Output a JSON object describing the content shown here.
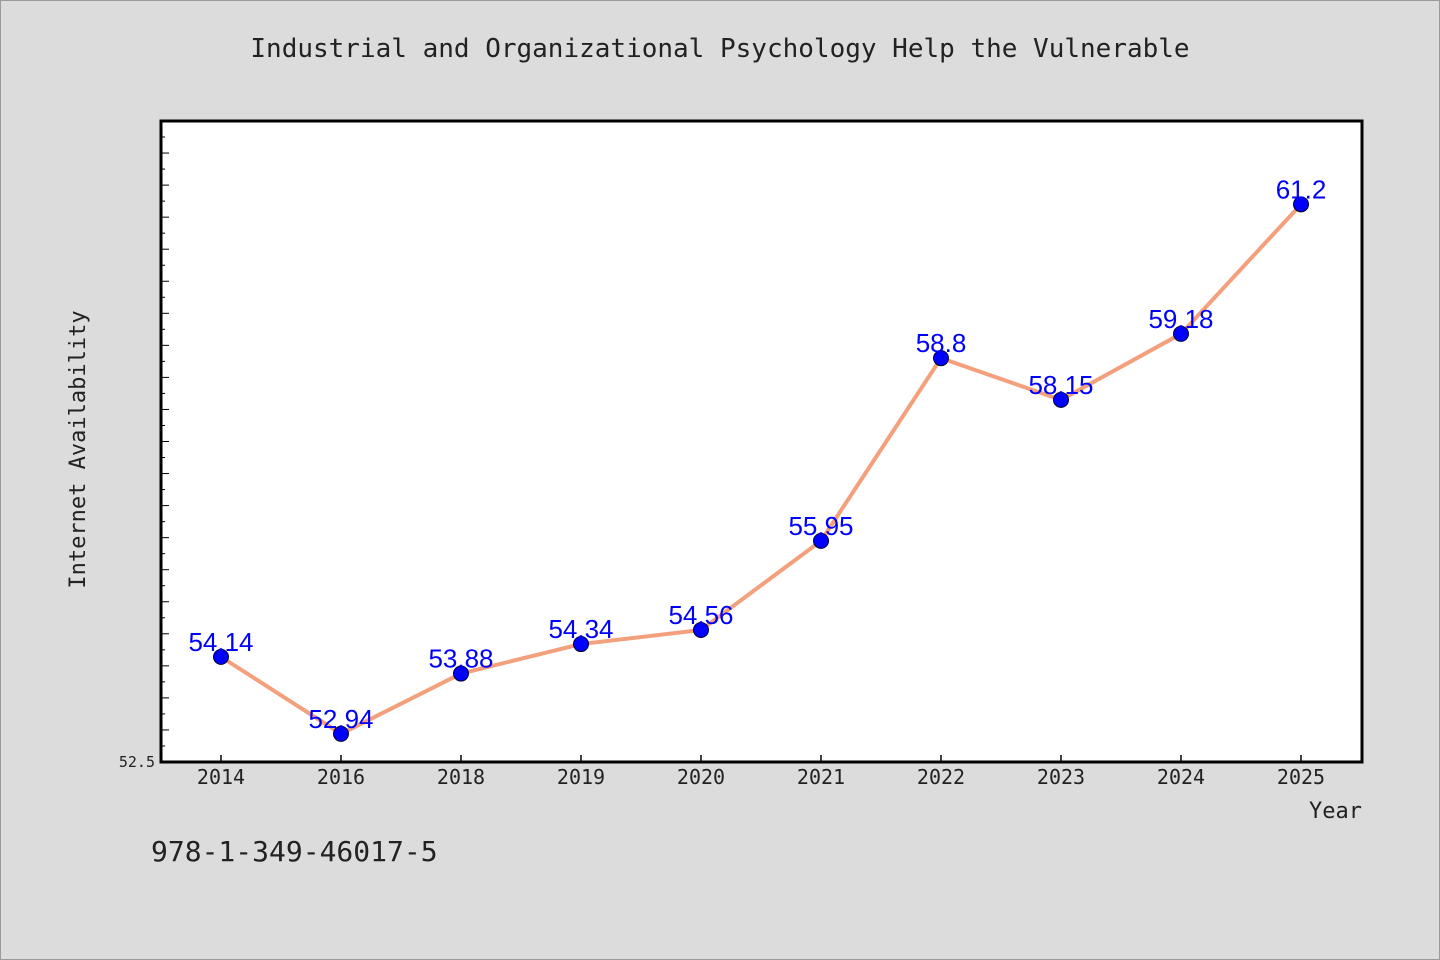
{
  "chart_data": {
    "type": "line",
    "title": "Industrial and Organizational Psychology Help the Vulnerable",
    "xlabel": "Year",
    "ylabel": "Internet Availability",
    "categories": [
      "2014",
      "2016",
      "2018",
      "2019",
      "2020",
      "2021",
      "2022",
      "2023",
      "2024",
      "2025"
    ],
    "series": [
      {
        "values": [
          54.14,
          52.94,
          53.88,
          54.34,
          54.56,
          55.95,
          58.8,
          58.15,
          59.18,
          61.2
        ],
        "data_labels": [
          "54.14",
          "52.94",
          "53.88",
          "54.34",
          "54.56",
          "55.95",
          "58.8",
          "58.15",
          "59.18",
          "61.2"
        ]
      }
    ],
    "ylim": [
      52.5,
      62.5
    ],
    "y_tick_label": "52.5",
    "grid": false,
    "line_color": "#f4a07c",
    "marker_color": "#0000ff",
    "label_color": "#0000ff"
  },
  "footer": {
    "isbn": "978-1-349-46017-5"
  }
}
